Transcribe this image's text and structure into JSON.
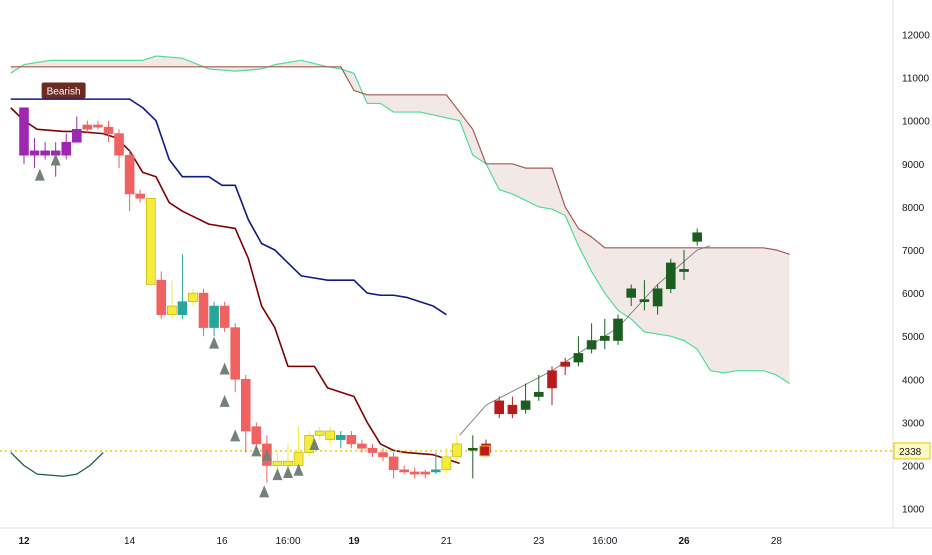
{
  "chart_data": {
    "type": "candlestick",
    "title": "",
    "xlabel": "",
    "ylabel": "",
    "ylim": [
      550,
      12800
    ],
    "y_ticks": [
      1000,
      2000,
      3000,
      4000,
      5000,
      6000,
      7000,
      8000,
      9000,
      10000,
      11000,
      12000
    ],
    "x_ticks": [
      {
        "label": "12",
        "x": 0,
        "bold": true
      },
      {
        "label": "14",
        "x": 8,
        "bold": false
      },
      {
        "label": "16",
        "x": 15,
        "bold": false
      },
      {
        "label": "16:00",
        "x": 20,
        "bold": false
      },
      {
        "label": "19",
        "x": 25,
        "bold": true
      },
      {
        "label": "21",
        "x": 32,
        "bold": false
      },
      {
        "label": "23",
        "x": 39,
        "bold": false
      },
      {
        "label": "16:00",
        "x": 44,
        "bold": false
      },
      {
        "label": "26",
        "x": 50,
        "bold": true
      },
      {
        "label": "28",
        "x": 57,
        "bold": false
      }
    ],
    "last_price": {
      "value": 2338,
      "label": "2338"
    },
    "annotation": {
      "text": "Bearish",
      "x": 3,
      "y": 10700
    },
    "grid": false,
    "colors": {
      "bull": "#1b5e20",
      "bear_strong": "#b71c1c",
      "bear": "#f06262",
      "yellow": "#f5eb3b",
      "purple": "#9c27b0",
      "teal": "#26a69a",
      "blue_line": "#0d1b8a",
      "darkred_line": "#800000",
      "senkou_a": "#4ddc9a",
      "senkou_b": "#a35a50",
      "cloud": "#eee1de",
      "price_line": "#e6c800",
      "arrow": "#758079",
      "label_bg": "#6d2a22"
    },
    "candles": [
      {
        "x": 0.0,
        "o": 10300,
        "h": 10300,
        "l": 9000,
        "c": 9200,
        "color": "purple"
      },
      {
        "x": 0.8,
        "o": 9300,
        "h": 9600,
        "l": 8900,
        "c": 9200,
        "color": "purple"
      },
      {
        "x": 1.6,
        "o": 9200,
        "h": 9500,
        "l": 9100,
        "c": 9300,
        "color": "purple"
      },
      {
        "x": 2.4,
        "o": 9200,
        "h": 9500,
        "l": 8700,
        "c": 9300,
        "color": "purple"
      },
      {
        "x": 3.2,
        "o": 9200,
        "h": 9700,
        "l": 9100,
        "c": 9500,
        "color": "purple"
      },
      {
        "x": 4.0,
        "o": 9500,
        "h": 10100,
        "l": 9500,
        "c": 9800,
        "color": "purple"
      },
      {
        "x": 4.8,
        "o": 9800,
        "h": 10000,
        "l": 9700,
        "c": 9900,
        "color": "bear"
      },
      {
        "x": 5.6,
        "o": 9900,
        "h": 10000,
        "l": 9800,
        "c": 9850,
        "color": "bear"
      },
      {
        "x": 6.4,
        "o": 9850,
        "h": 10000,
        "l": 9500,
        "c": 9700,
        "color": "bear"
      },
      {
        "x": 7.2,
        "o": 9700,
        "h": 9800,
        "l": 8900,
        "c": 9200,
        "color": "bear"
      },
      {
        "x": 8.0,
        "o": 9200,
        "h": 9300,
        "l": 7900,
        "c": 8300,
        "color": "bear"
      },
      {
        "x": 8.8,
        "o": 8300,
        "h": 8400,
        "l": 8100,
        "c": 8200,
        "color": "bear"
      },
      {
        "x": 9.6,
        "o": 6200,
        "h": 8200,
        "l": 6200,
        "c": 8200,
        "color": "yellow"
      },
      {
        "x": 10.4,
        "o": 6300,
        "h": 6500,
        "l": 5400,
        "c": 5500,
        "color": "bear"
      },
      {
        "x": 11.2,
        "o": 5500,
        "h": 6300,
        "l": 5400,
        "c": 5700,
        "color": "yellow"
      },
      {
        "x": 12.0,
        "o": 5500,
        "h": 6900,
        "l": 5400,
        "c": 5800,
        "color": "teal"
      },
      {
        "x": 12.8,
        "o": 5800,
        "h": 6100,
        "l": 5700,
        "c": 6000,
        "color": "yellow"
      },
      {
        "x": 13.6,
        "o": 6000,
        "h": 6100,
        "l": 5000,
        "c": 5200,
        "color": "bear"
      },
      {
        "x": 14.4,
        "o": 5200,
        "h": 5800,
        "l": 5000,
        "c": 5700,
        "color": "teal"
      },
      {
        "x": 15.2,
        "o": 5700,
        "h": 5800,
        "l": 5100,
        "c": 5200,
        "color": "bear"
      },
      {
        "x": 16.0,
        "o": 5200,
        "h": 5300,
        "l": 3700,
        "c": 4000,
        "color": "bear"
      },
      {
        "x": 16.8,
        "o": 4000,
        "h": 4100,
        "l": 2300,
        "c": 2800,
        "color": "bear"
      },
      {
        "x": 17.6,
        "o": 2900,
        "h": 3000,
        "l": 2300,
        "c": 2500,
        "color": "bear"
      },
      {
        "x": 18.4,
        "o": 2500,
        "h": 2700,
        "l": 1600,
        "c": 2000,
        "color": "bear"
      },
      {
        "x": 19.2,
        "o": 2000,
        "h": 2300,
        "l": 1900,
        "c": 2100,
        "color": "yellow"
      },
      {
        "x": 20.0,
        "o": 2100,
        "h": 2500,
        "l": 1900,
        "c": 2000,
        "color": "yellow"
      },
      {
        "x": 20.8,
        "o": 2000,
        "h": 2900,
        "l": 1900,
        "c": 2300,
        "color": "yellow"
      },
      {
        "x": 21.6,
        "o": 2300,
        "h": 2800,
        "l": 2200,
        "c": 2700,
        "color": "yellow"
      },
      {
        "x": 22.4,
        "o": 2700,
        "h": 2900,
        "l": 2600,
        "c": 2800,
        "color": "yellow"
      },
      {
        "x": 23.2,
        "o": 2800,
        "h": 2900,
        "l": 2500,
        "c": 2600,
        "color": "yellow"
      },
      {
        "x": 24.0,
        "o": 2600,
        "h": 2800,
        "l": 2400,
        "c": 2700,
        "color": "teal"
      },
      {
        "x": 24.8,
        "o": 2700,
        "h": 2800,
        "l": 2400,
        "c": 2500,
        "color": "bear"
      },
      {
        "x": 25.6,
        "o": 2500,
        "h": 2600,
        "l": 2300,
        "c": 2400,
        "color": "bear"
      },
      {
        "x": 26.4,
        "o": 2400,
        "h": 2500,
        "l": 2200,
        "c": 2300,
        "color": "bear"
      },
      {
        "x": 27.2,
        "o": 2300,
        "h": 2400,
        "l": 2100,
        "c": 2200,
        "color": "bear"
      },
      {
        "x": 28.0,
        "o": 2200,
        "h": 2300,
        "l": 1700,
        "c": 1900,
        "color": "bear"
      },
      {
        "x": 28.8,
        "o": 1900,
        "h": 2000,
        "l": 1800,
        "c": 1850,
        "color": "bear"
      },
      {
        "x": 29.6,
        "o": 1850,
        "h": 1950,
        "l": 1700,
        "c": 1800,
        "color": "bear"
      },
      {
        "x": 30.4,
        "o": 1800,
        "h": 1900,
        "l": 1700,
        "c": 1850,
        "color": "bear"
      },
      {
        "x": 31.2,
        "o": 1850,
        "h": 2300,
        "l": 1800,
        "c": 1900,
        "color": "teal"
      },
      {
        "x": 32.0,
        "o": 1900,
        "h": 2400,
        "l": 1800,
        "c": 2200,
        "color": "yellow"
      },
      {
        "x": 32.8,
        "o": 2200,
        "h": 2700,
        "l": 2100,
        "c": 2500,
        "color": "yellow"
      },
      {
        "x": 34.0,
        "o": 2400,
        "h": 2700,
        "l": 1700,
        "c": 2400,
        "color": "bull"
      },
      {
        "x": 35.0,
        "o": 2500,
        "h": 2600,
        "l": 2300,
        "c": 2300,
        "color": "bear_strong"
      },
      {
        "x": 36.0,
        "o": 3200,
        "h": 3600,
        "l": 3100,
        "c": 3500,
        "color": "bear_strong"
      },
      {
        "x": 37.0,
        "o": 3200,
        "h": 3600,
        "l": 3100,
        "c": 3400,
        "color": "bear_strong"
      },
      {
        "x": 38.0,
        "o": 3300,
        "h": 3900,
        "l": 3200,
        "c": 3500,
        "color": "bull"
      },
      {
        "x": 39.0,
        "o": 3600,
        "h": 4100,
        "l": 3500,
        "c": 3700,
        "color": "bull"
      },
      {
        "x": 40.0,
        "o": 3800,
        "h": 4300,
        "l": 3400,
        "c": 4200,
        "color": "bear_strong"
      },
      {
        "x": 41.0,
        "o": 4300,
        "h": 4500,
        "l": 4100,
        "c": 4400,
        "color": "bear_strong"
      },
      {
        "x": 42.0,
        "o": 4400,
        "h": 5000,
        "l": 4300,
        "c": 4600,
        "color": "bull"
      },
      {
        "x": 43.0,
        "o": 4700,
        "h": 5300,
        "l": 4600,
        "c": 4900,
        "color": "bull"
      },
      {
        "x": 44.0,
        "o": 4900,
        "h": 5400,
        "l": 4700,
        "c": 5000,
        "color": "bull"
      },
      {
        "x": 45.0,
        "o": 4900,
        "h": 5500,
        "l": 4800,
        "c": 5400,
        "color": "bull"
      },
      {
        "x": 46.0,
        "o": 5900,
        "h": 6200,
        "l": 5700,
        "c": 6100,
        "color": "bull"
      },
      {
        "x": 47.0,
        "o": 5800,
        "h": 6300,
        "l": 5600,
        "c": 5850,
        "color": "bull"
      },
      {
        "x": 48.0,
        "o": 5700,
        "h": 6200,
        "l": 5500,
        "c": 6100,
        "color": "bull"
      },
      {
        "x": 49.0,
        "o": 6100,
        "h": 6800,
        "l": 6000,
        "c": 6700,
        "color": "bull"
      },
      {
        "x": 50.0,
        "o": 6500,
        "h": 7000,
        "l": 6300,
        "c": 6550,
        "color": "bull"
      },
      {
        "x": 51.0,
        "o": 7200,
        "h": 7500,
        "l": 7100,
        "c": 7400,
        "color": "bull"
      }
    ],
    "lines": {
      "blue": [
        [
          -1,
          10500
        ],
        [
          8,
          10500
        ],
        [
          9,
          10300
        ],
        [
          10,
          10000
        ],
        [
          11,
          9100
        ],
        [
          12,
          8700
        ],
        [
          14,
          8700
        ],
        [
          15,
          8500
        ],
        [
          16,
          8500
        ],
        [
          17,
          7700
        ],
        [
          18,
          7150
        ],
        [
          19,
          7000
        ],
        [
          20,
          6700
        ],
        [
          21,
          6400
        ],
        [
          22,
          6350
        ],
        [
          23,
          6300
        ],
        [
          24,
          6300
        ],
        [
          25,
          6300
        ],
        [
          26,
          6000
        ],
        [
          27,
          5950
        ],
        [
          28,
          5950
        ],
        [
          29,
          5900
        ],
        [
          30,
          5800
        ],
        [
          31,
          5700
        ],
        [
          32,
          5500
        ]
      ],
      "darkred": [
        [
          -1,
          10300
        ],
        [
          0,
          10000
        ],
        [
          1,
          9800
        ],
        [
          3,
          9750
        ],
        [
          4,
          9750
        ],
        [
          6,
          9700
        ],
        [
          7,
          9600
        ],
        [
          8,
          9300
        ],
        [
          9,
          8800
        ],
        [
          10,
          8700
        ],
        [
          11,
          8100
        ],
        [
          12,
          7900
        ],
        [
          14,
          7600
        ],
        [
          16,
          7500
        ],
        [
          17,
          6800
        ],
        [
          18,
          5700
        ],
        [
          19,
          5200
        ],
        [
          20,
          4300
        ],
        [
          22,
          4300
        ],
        [
          23,
          3800
        ],
        [
          25,
          3600
        ],
        [
          26,
          3000
        ],
        [
          27,
          2500
        ],
        [
          28,
          2350
        ],
        [
          29,
          2300
        ],
        [
          31,
          2250
        ],
        [
          32,
          2150
        ],
        [
          33,
          2050
        ]
      ],
      "senkou_a": [
        [
          -1,
          11100
        ],
        [
          0,
          11300
        ],
        [
          2,
          11400
        ],
        [
          9,
          11400
        ],
        [
          10,
          11500
        ],
        [
          12,
          11450
        ],
        [
          14,
          11200
        ],
        [
          16,
          11150
        ],
        [
          18,
          11200
        ],
        [
          19,
          11300
        ],
        [
          21,
          11400
        ],
        [
          23,
          11250
        ],
        [
          24,
          11200
        ],
        [
          25,
          11100
        ],
        [
          26,
          10400
        ],
        [
          27,
          10400
        ],
        [
          28,
          10200
        ],
        [
          30,
          10200
        ],
        [
          33,
          10000
        ],
        [
          34,
          9200
        ],
        [
          35,
          9000
        ],
        [
          36,
          8400
        ],
        [
          37,
          8300
        ],
        [
          39,
          8000
        ],
        [
          40,
          7950
        ],
        [
          41,
          7800
        ],
        [
          42,
          7100
        ],
        [
          43,
          6500
        ],
        [
          44,
          6000
        ],
        [
          45,
          5600
        ],
        [
          46,
          5400
        ],
        [
          47,
          5100
        ],
        [
          49,
          5000
        ],
        [
          50,
          4900
        ],
        [
          51,
          4700
        ],
        [
          52,
          4200
        ],
        [
          53,
          4150
        ],
        [
          54,
          4200
        ],
        [
          56,
          4200
        ],
        [
          57,
          4100
        ],
        [
          58,
          3900
        ]
      ],
      "senkou_b": [
        [
          -1,
          11250
        ],
        [
          24,
          11250
        ],
        [
          25,
          10700
        ],
        [
          26,
          10600
        ],
        [
          32,
          10600
        ],
        [
          33,
          10200
        ],
        [
          34,
          9800
        ],
        [
          35,
          9000
        ],
        [
          37,
          9000
        ],
        [
          38,
          8900
        ],
        [
          40,
          8900
        ],
        [
          41,
          8000
        ],
        [
          42,
          7500
        ],
        [
          43,
          7300
        ],
        [
          44,
          7050
        ],
        [
          56,
          7050
        ],
        [
          57,
          7000
        ],
        [
          58,
          6900
        ]
      ],
      "chikou": [
        [
          -1,
          2300
        ],
        [
          0,
          2000
        ],
        [
          1,
          1800
        ],
        [
          3,
          1750
        ],
        [
          4,
          1800
        ],
        [
          5,
          2000
        ],
        [
          6,
          2300
        ]
      ],
      "thin_grey": [
        [
          33,
          2700
        ],
        [
          35,
          3400
        ],
        [
          40,
          4200
        ],
        [
          45,
          5200
        ],
        [
          48,
          6200
        ],
        [
          51,
          7000
        ],
        [
          52,
          7100
        ]
      ]
    },
    "down_arrows": [
      [
        1.2,
        8750
      ],
      [
        2.4,
        9100
      ],
      [
        14.4,
        4850
      ],
      [
        15.2,
        4250
      ],
      [
        15.2,
        3500
      ],
      [
        16.0,
        2700
      ],
      [
        17.6,
        2350
      ],
      [
        18.4,
        2250
      ],
      [
        19.2,
        1800
      ],
      [
        20.0,
        1850
      ],
      [
        20.8,
        1900
      ],
      [
        18.2,
        1400
      ],
      [
        22.0,
        2500
      ]
    ]
  }
}
